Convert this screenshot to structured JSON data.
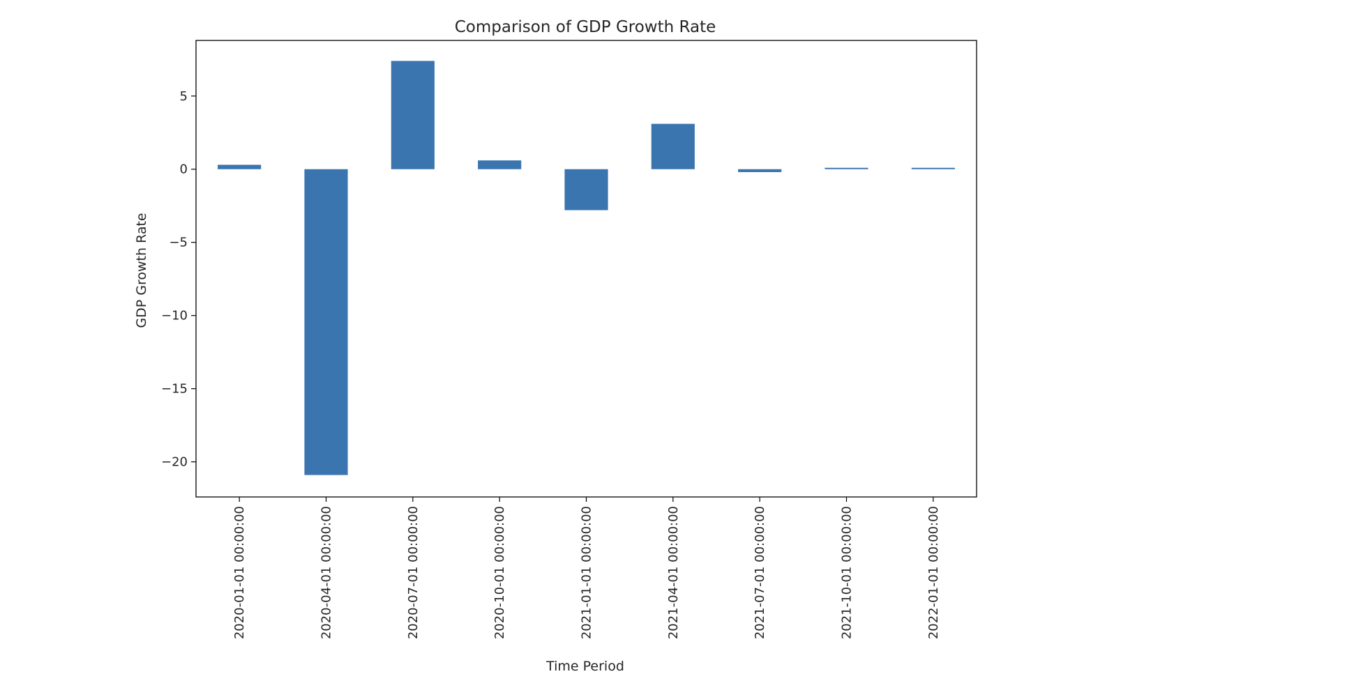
{
  "chart_data": {
    "type": "bar",
    "title": "Comparison of GDP Growth Rate",
    "xlabel": "Time Period",
    "ylabel": "GDP Growth Rate",
    "categories": [
      "2020-01-01 00:00:00",
      "2020-04-01 00:00:00",
      "2020-07-01 00:00:00",
      "2020-10-01 00:00:00",
      "2021-01-01 00:00:00",
      "2021-04-01 00:00:00",
      "2021-07-01 00:00:00",
      "2021-10-01 00:00:00",
      "2022-01-01 00:00:00"
    ],
    "values": [
      0.3,
      -20.9,
      7.4,
      0.6,
      -2.8,
      3.1,
      -0.2,
      0.05,
      0.05
    ],
    "ylim": [
      -22.4,
      8.8
    ],
    "yticks": [
      5,
      0,
      -5,
      -10,
      -15,
      -20
    ],
    "ytick_labels": [
      "5",
      "0",
      "−5",
      "−10",
      "−15",
      "−20"
    ],
    "grid": false,
    "legend": "none",
    "bar_color": "#3a75b0"
  }
}
